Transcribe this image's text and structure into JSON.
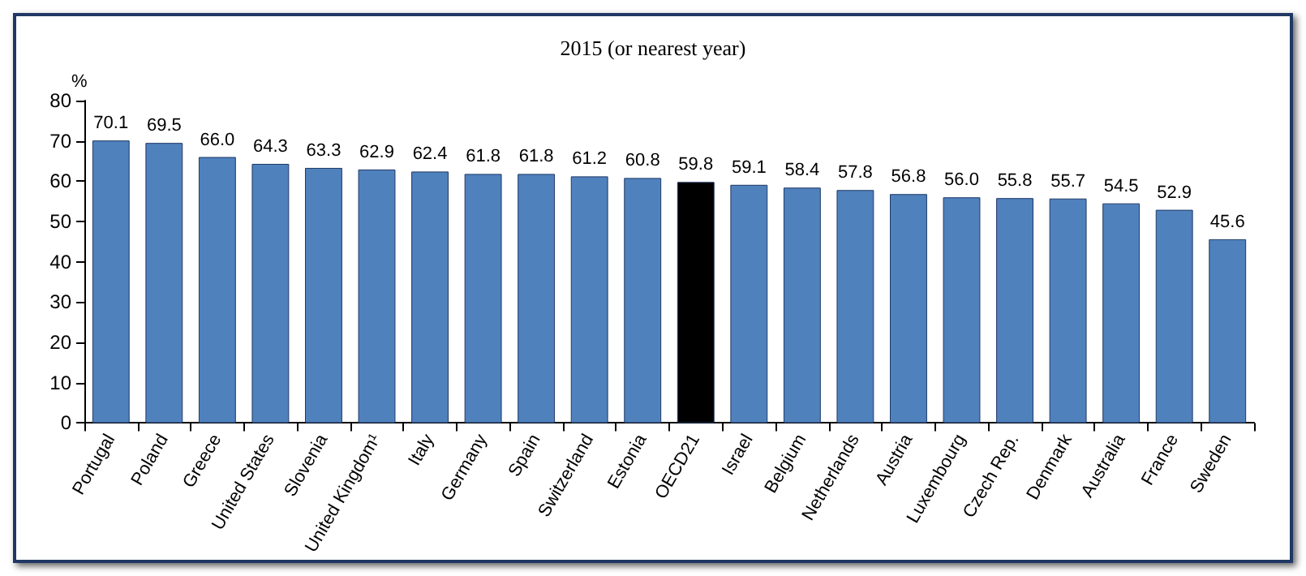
{
  "chart_data": {
    "type": "bar",
    "title": "2015 (or nearest year)",
    "ylabel": "%",
    "categories": [
      "Portugal",
      "Poland",
      "Greece",
      "United States",
      "Slovenia",
      "United Kingdom¹",
      "Italy",
      "Germany",
      "Spain",
      "Switzerland",
      "Estonia",
      "OECD21",
      "Israel",
      "Belgium",
      "Netherlands",
      "Austria",
      "Luxembourg",
      "Czech Rep.",
      "Denmark",
      "Australia",
      "France",
      "Sweden"
    ],
    "values": [
      70.1,
      69.5,
      66.0,
      64.3,
      63.3,
      62.9,
      62.4,
      61.8,
      61.8,
      61.2,
      60.8,
      59.8,
      59.1,
      58.4,
      57.8,
      56.8,
      56.0,
      55.8,
      55.7,
      54.5,
      52.9,
      45.6
    ],
    "colors": [
      "#4f81bd",
      "#4f81bd",
      "#4f81bd",
      "#4f81bd",
      "#4f81bd",
      "#4f81bd",
      "#4f81bd",
      "#4f81bd",
      "#4f81bd",
      "#4f81bd",
      "#4f81bd",
      "#000000",
      "#4f81bd",
      "#4f81bd",
      "#4f81bd",
      "#4f81bd",
      "#4f81bd",
      "#4f81bd",
      "#4f81bd",
      "#4f81bd",
      "#4f81bd",
      "#4f81bd"
    ],
    "value_labels": [
      "70.1",
      "69.5",
      "66.0",
      "64.3",
      "63.3",
      "62.9",
      "62.4",
      "61.8",
      "61.8",
      "61.2",
      "60.8",
      "59.8",
      "59.1",
      "58.4",
      "57.8",
      "56.8",
      "56.0",
      "55.8",
      "55.7",
      "54.5",
      "52.9",
      "45.6"
    ],
    "ylim": [
      0,
      80
    ],
    "yticks": [
      0,
      10,
      20,
      30,
      40,
      50,
      60,
      70,
      80
    ],
    "grid": false
  }
}
